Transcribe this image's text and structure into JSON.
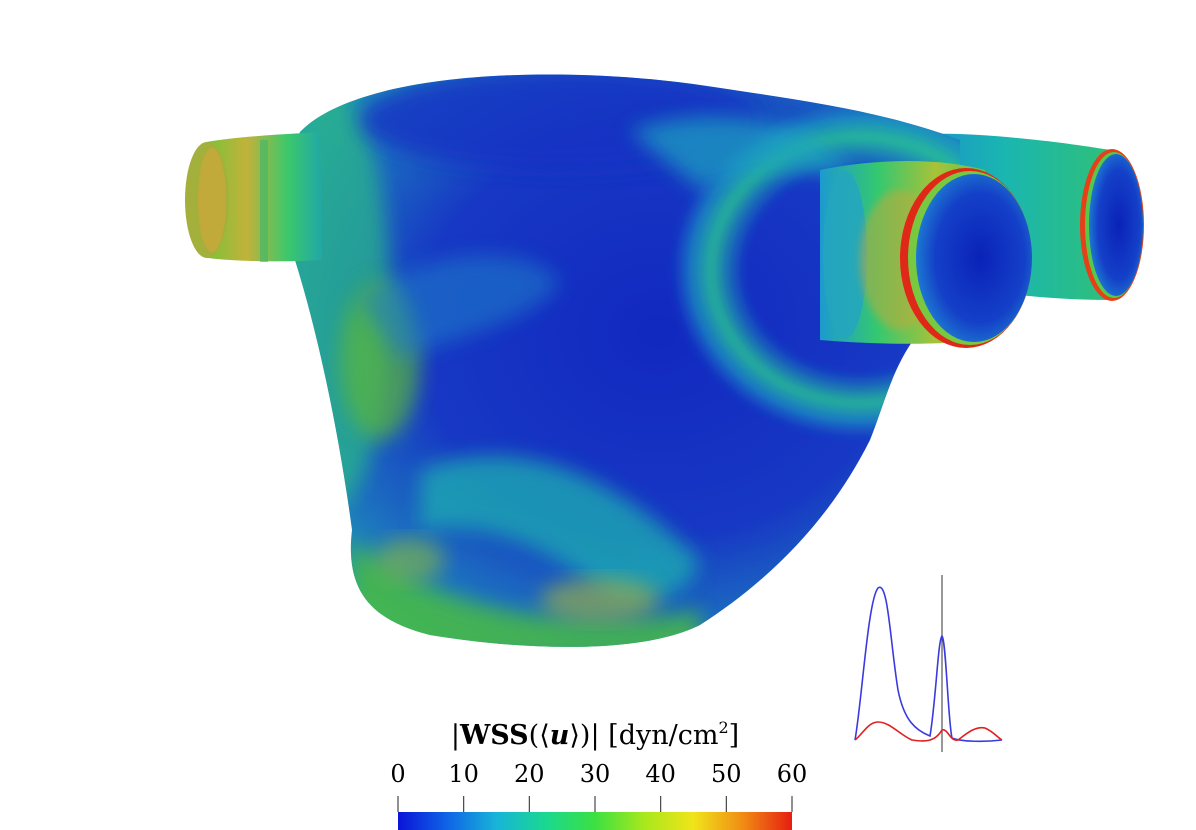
{
  "figure": {
    "colorbar": {
      "title_prefix": "|",
      "title_wss": "WSS",
      "title_open": "(⟨",
      "title_u": "u",
      "title_close": "⟩)|",
      "title_units": "[dyn/cm",
      "title_sup": "2",
      "title_end": "]",
      "ticks": [
        "0",
        "10",
        "20",
        "30",
        "40",
        "50",
        "60"
      ],
      "range": [
        0,
        60
      ],
      "colormap": [
        "#0a14d8",
        "#0f64e6",
        "#18b4d8",
        "#1ad890",
        "#3ce042",
        "#a8e81c",
        "#f0e41a",
        "#f08c14",
        "#e61e10"
      ]
    },
    "surface_colors": {
      "low": "#1530c8",
      "mid": "#1a8fc0",
      "midhigh": "#23c07a",
      "high": "#6cc82e",
      "peak": "#e03a14"
    },
    "waveform_inset": {
      "series": [
        {
          "color": "#3a3ae0"
        },
        {
          "color": "#e02020"
        }
      ],
      "marker_color": "#555555"
    }
  }
}
